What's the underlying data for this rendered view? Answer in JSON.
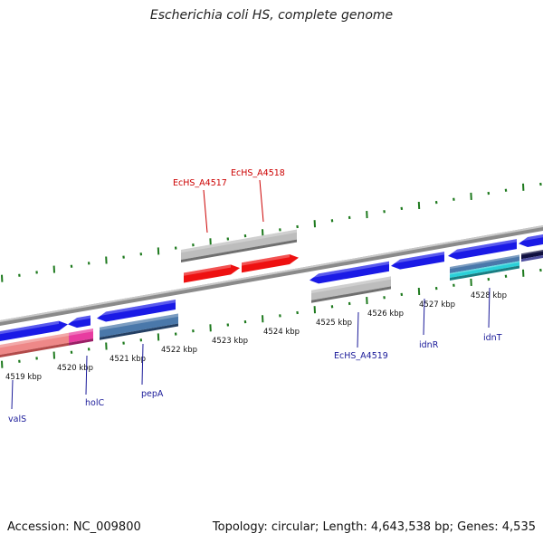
{
  "title": "Escherichia coli HS, complete genome",
  "footer": {
    "accession": "Accession: NC_009800",
    "summary": "Topology: circular; Length: 4,643,538 bp; Genes: 4,535"
  },
  "colors": {
    "backbone": "#8a8a8a",
    "forward_gene": "#1a1ae6",
    "reverse_gene": "#ee1111",
    "unannotated": "#bdbdbd",
    "rna_pink": "#e83ca0",
    "rna_salmon": "#ee8888",
    "teal": "#2ad0d8",
    "steel": "#4a78aa",
    "tick": "#1e7a1e",
    "gene_label": "#1a1a99",
    "highlight_label": "#cc0000"
  },
  "map": {
    "ticks": [
      "4519 kbp",
      "4520 kbp",
      "4521 kbp",
      "4522 kbp",
      "4523 kbp",
      "4524 kbp",
      "4525 kbp",
      "4526 kbp",
      "4527 kbp",
      "4528 kbp"
    ],
    "gene_labels": [
      {
        "text": "valS",
        "highlight": false
      },
      {
        "text": "holC",
        "highlight": false
      },
      {
        "text": "pepA",
        "highlight": false
      },
      {
        "text": "EcHS_A4517",
        "highlight": true
      },
      {
        "text": "EcHS_A4518",
        "highlight": true
      },
      {
        "text": "EcHS_A4519",
        "highlight": false
      },
      {
        "text": "idnR",
        "highlight": false
      },
      {
        "text": "idnT",
        "highlight": false
      }
    ]
  }
}
